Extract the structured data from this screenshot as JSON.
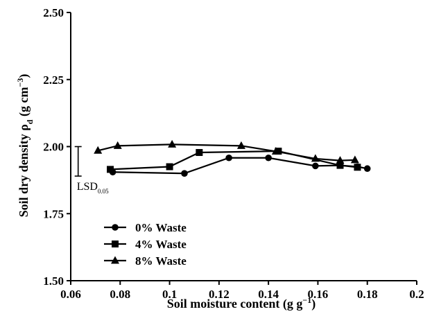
{
  "chart_data": {
    "type": "line",
    "xlabel_main": "Soil moisture content (g g",
    "xlabel_sup": "−1",
    "xlabel_close": ")",
    "ylabel_main": "Soil dry density ρ",
    "ylabel_sub": "d",
    "ylabel_mid": " (g cm",
    "ylabel_sup": "−3",
    "ylabel_close": ")",
    "xlim": [
      0.06,
      0.2
    ],
    "ylim": [
      1.5,
      2.5
    ],
    "xticks": [
      "0.06",
      "0.08",
      "0.1",
      "0.12",
      "0.14",
      "0.16",
      "0.18",
      "0.2"
    ],
    "yticks": [
      "1.50",
      "1.75",
      "2.00",
      "2.25",
      "2.50"
    ],
    "legend_position": "lower-left",
    "grid": false,
    "series": [
      {
        "name": "0% Waste",
        "marker": "circle",
        "x": [
          0.077,
          0.106,
          0.124,
          0.14,
          0.159,
          0.169,
          0.176,
          0.18
        ],
        "y": [
          1.905,
          1.9,
          1.958,
          1.958,
          1.928,
          1.93,
          1.925,
          1.918
        ]
      },
      {
        "name": "4% Waste",
        "marker": "square",
        "x": [
          0.076,
          0.1,
          0.112,
          0.144,
          0.169,
          0.176
        ],
        "y": [
          1.915,
          1.925,
          1.978,
          1.983,
          1.93,
          1.923
        ]
      },
      {
        "name": "8% Waste",
        "marker": "triangle",
        "x": [
          0.071,
          0.079,
          0.101,
          0.129,
          0.143,
          0.159,
          0.169,
          0.175
        ],
        "y": [
          1.985,
          2.003,
          2.008,
          2.003,
          1.982,
          1.955,
          1.948,
          1.95
        ]
      }
    ],
    "lsd": {
      "label_main": "LSD",
      "label_sub": "0.05",
      "x": 0.063,
      "y_low": 1.89,
      "y_high": 2.0
    }
  }
}
